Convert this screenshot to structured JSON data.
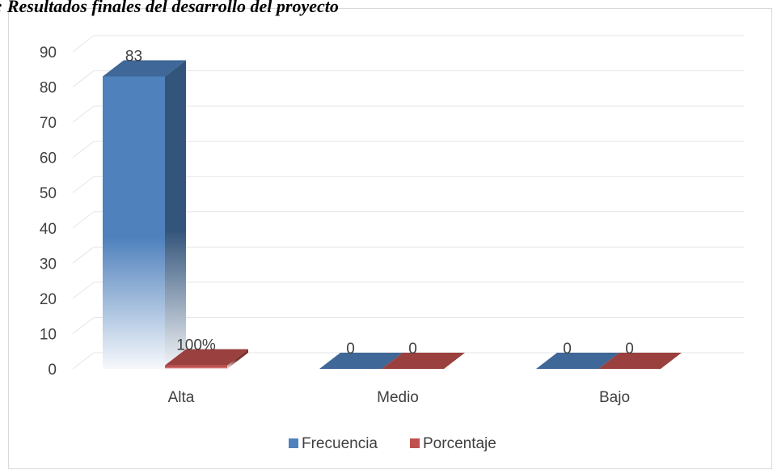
{
  "chart_data": {
    "type": "bar3d",
    "title": ": Resultados finales del desarrollo del proyecto",
    "categories": [
      "Alta",
      "Medio",
      "Bajo"
    ],
    "series": [
      {
        "name": "Frecuencia",
        "color": "#4f81bd",
        "values": [
          83,
          0,
          0
        ]
      },
      {
        "name": "Porcentaje",
        "color": "#c0504d",
        "values": [
          1,
          0,
          0
        ],
        "value_labels": [
          "100%",
          "0",
          "0"
        ]
      }
    ],
    "ylim": [
      0,
      90
    ],
    "yticks": [
      0,
      10,
      20,
      30,
      40,
      50,
      60,
      70,
      80,
      90
    ],
    "grid": true,
    "legend": "bottom"
  }
}
